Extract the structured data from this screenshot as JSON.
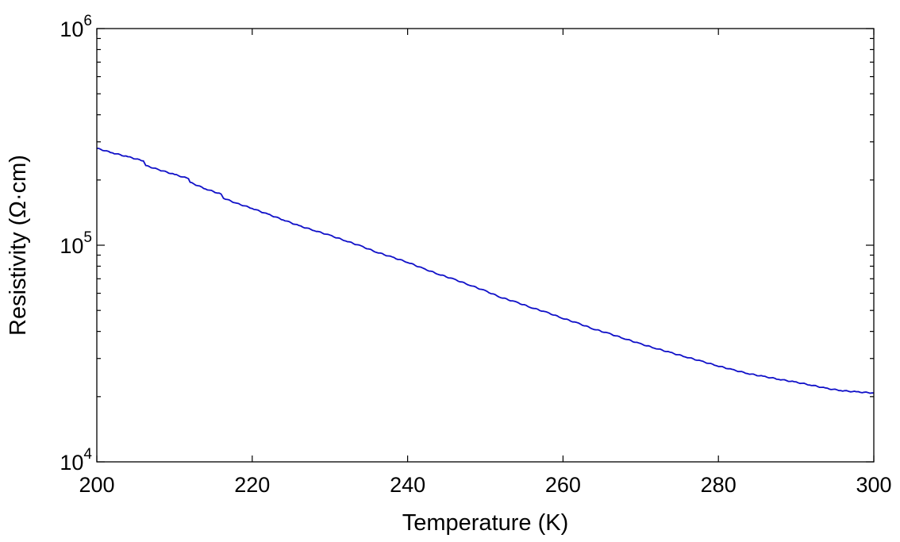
{
  "chart_data": {
    "type": "line",
    "xlabel": "Temperature (K)",
    "ylabel": "Resistivity (Ω·cm)",
    "xlim": [
      200,
      300
    ],
    "ylim": [
      10000,
      1000000
    ],
    "yscale": "log",
    "x_ticks": [
      200,
      220,
      240,
      260,
      280,
      300
    ],
    "y_ticks": [
      {
        "value": 10000,
        "base": "10",
        "exp": "4"
      },
      {
        "value": 100000,
        "base": "10",
        "exp": "5"
      },
      {
        "value": 1000000,
        "base": "10",
        "exp": "6"
      }
    ],
    "grid": false,
    "colors": {
      "series": "#1010c8",
      "axes": "#000000"
    },
    "series": [
      {
        "x": [
          200,
          202,
          204,
          206,
          206.3,
          208,
          210,
          211.8,
          212,
          214,
          216,
          216.3,
          218,
          220,
          222,
          224,
          226,
          228,
          230,
          232,
          234,
          236,
          238,
          240,
          242,
          244,
          246,
          248,
          250,
          252,
          254,
          256,
          258,
          260,
          262,
          264,
          266,
          268,
          270,
          272,
          274,
          276,
          278,
          280,
          282,
          284,
          286,
          288,
          290,
          292,
          294,
          296,
          298,
          300
        ],
        "y": [
          280000,
          267000,
          256000,
          245000,
          233000,
          223000,
          212000,
          203000,
          195000,
          182000,
          172000,
          165000,
          156000,
          148000,
          139000,
          131000,
          123000,
          117000,
          111000,
          105000,
          99000,
          93000,
          88000,
          83500,
          78000,
          73500,
          69500,
          65500,
          61500,
          57500,
          54500,
          51500,
          48800,
          46000,
          43500,
          41000,
          39000,
          37000,
          35000,
          33400,
          31800,
          30400,
          29000,
          27700,
          26500,
          25500,
          24700,
          24000,
          23300,
          22600,
          21800,
          21300,
          21000,
          20800
        ]
      }
    ]
  }
}
